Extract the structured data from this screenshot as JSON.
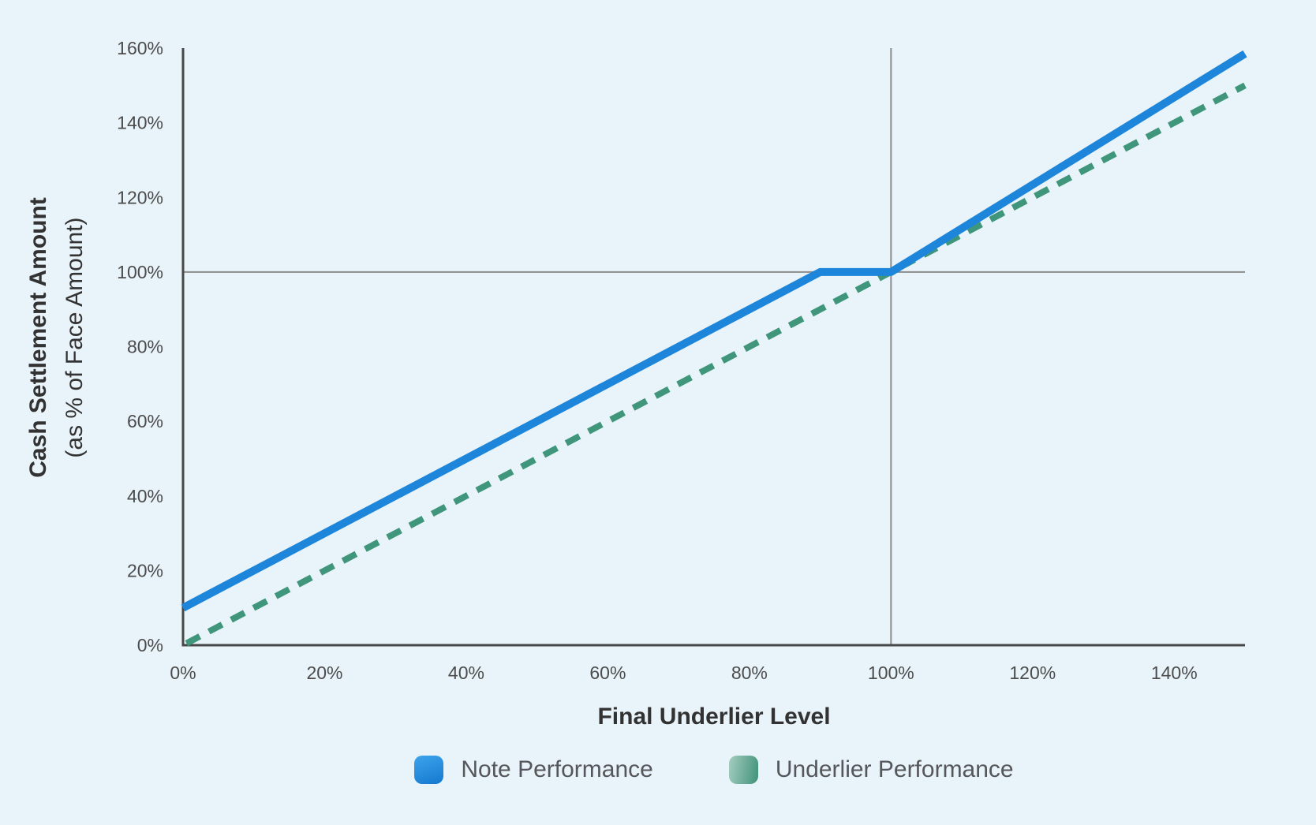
{
  "chart_data": {
    "type": "line",
    "xlabel": "Final Underlier Level",
    "ylabel_line1": "Cash Settlement Amount",
    "ylabel_line2": "(as % of Face Amount)",
    "xlim": [
      0,
      150
    ],
    "ylim": [
      0,
      160
    ],
    "x_tick_values": [
      0,
      20,
      40,
      60,
      80,
      100,
      120,
      140
    ],
    "x_tick_labels": [
      "0%",
      "20%",
      "40%",
      "60%",
      "80%",
      "100%",
      "120%",
      "140%"
    ],
    "y_tick_values": [
      0,
      20,
      40,
      60,
      80,
      100,
      120,
      140,
      160
    ],
    "y_tick_labels": [
      "0%",
      "20%",
      "40%",
      "60%",
      "80%",
      "100%",
      "120%",
      "140%",
      "160%"
    ],
    "grid": "off",
    "reference_lines": {
      "horizontal_y": 100,
      "vertical_x": 100
    },
    "legend_position": "bottom",
    "series": [
      {
        "name": "Note Performance",
        "style": "solid",
        "color": "#1e86da",
        "points": [
          [
            0,
            10
          ],
          [
            90,
            100
          ],
          [
            100,
            100
          ],
          [
            150,
            158.5
          ]
        ]
      },
      {
        "name": "Underlier Performance",
        "style": "dashed",
        "color": "#3f967b",
        "points": [
          [
            0,
            0
          ],
          [
            150,
            150
          ]
        ]
      }
    ]
  },
  "colors": {
    "background": "#e9f3fa",
    "axis_line": "#474747",
    "reference_line": "#8c8c8c",
    "tick_text": "#4c4c4c",
    "title_text": "#323232",
    "legend_text": "#55575a",
    "note_blue": "#1e86da",
    "underlier_green": "#3f967b"
  }
}
